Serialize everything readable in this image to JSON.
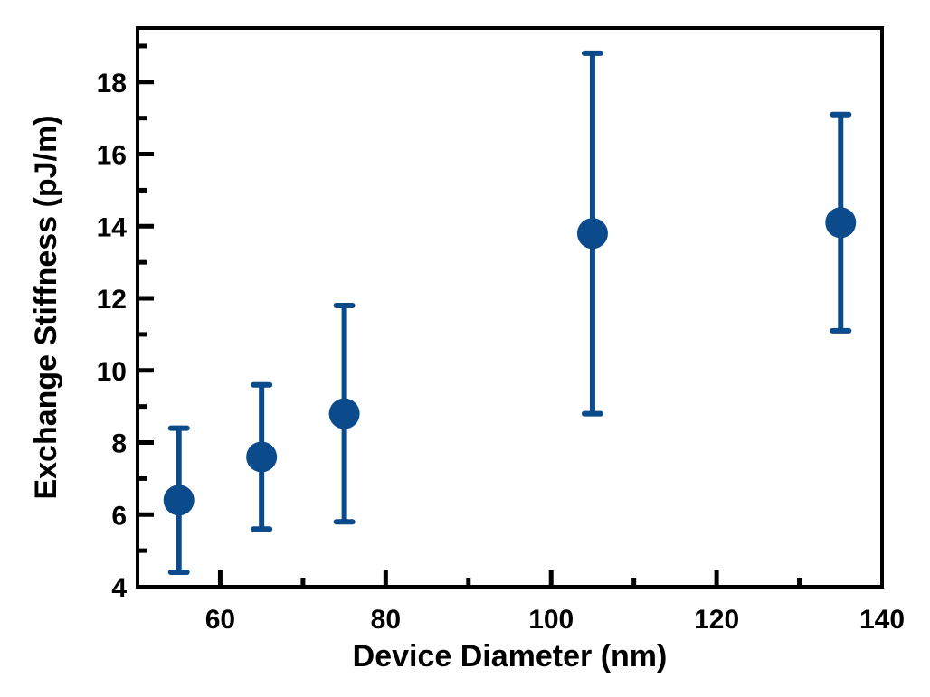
{
  "chart_data": {
    "type": "scatter",
    "title": "",
    "xlabel": "Device Diameter (nm)",
    "ylabel": "Exchange Stiffness (pJ/m)",
    "xlim": [
      50,
      140
    ],
    "ylim": [
      4,
      19.5
    ],
    "xticks": [
      60,
      80,
      100,
      120,
      140
    ],
    "yticks": [
      4,
      6,
      8,
      10,
      12,
      14,
      16,
      18
    ],
    "x_minor_step": 10,
    "y_minor_step": 1,
    "grid": false,
    "legend": "none",
    "color": "#0b4a8b",
    "series": [
      {
        "x": [
          55,
          65,
          75,
          105,
          135
        ],
        "y": [
          6.4,
          7.6,
          8.8,
          13.8,
          14.1
        ],
        "err_low": [
          4.4,
          5.6,
          5.8,
          8.8,
          11.1
        ],
        "err_high": [
          8.4,
          9.6,
          11.8,
          18.8,
          17.1
        ]
      }
    ]
  }
}
